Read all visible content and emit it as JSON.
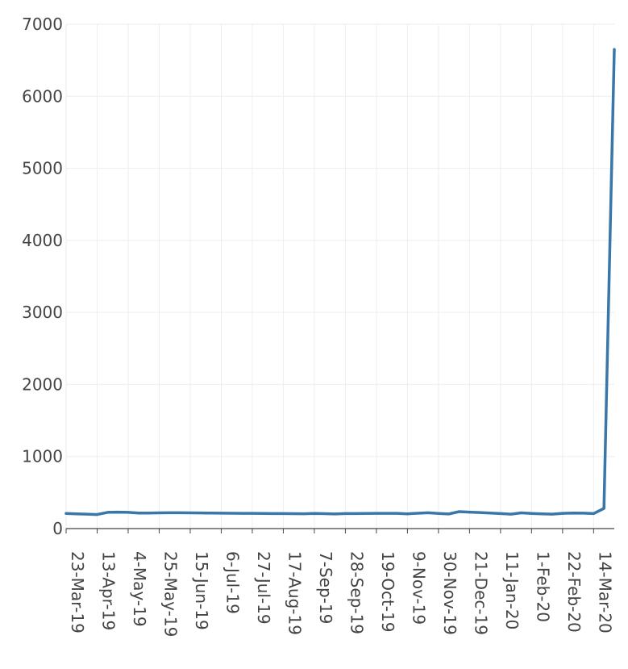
{
  "chart_data": {
    "type": "line",
    "title": "",
    "xlabel": "",
    "ylabel": "",
    "ylim": [
      0,
      7000
    ],
    "yticks": [
      0,
      1000,
      2000,
      3000,
      4000,
      5000,
      6000,
      7000
    ],
    "xlim": [
      "23-Mar-19",
      "28-Mar-20"
    ],
    "xtick_labels": [
      "23-Mar-19",
      "13-Apr-19",
      "4-May-19",
      "25-May-19",
      "15-Jun-19",
      "6-Jul-19",
      "27-Jul-19",
      "17-Aug-19",
      "7-Sep-19",
      "28-Sep-19",
      "19-Oct-19",
      "9-Nov-19",
      "30-Nov-19",
      "21-Dec-19",
      "11-Jan-20",
      "1-Feb-20",
      "22-Feb-20",
      "14-Mar-20"
    ],
    "grid": true,
    "legend": "none",
    "colors": {
      "series": "#3a76a8",
      "grid": "#eeeeee",
      "axis": "#444444"
    },
    "series": [
      {
        "x": [
          "23-Mar-19",
          "30-Mar-19",
          "6-Apr-19",
          "13-Apr-19",
          "20-Apr-19",
          "27-Apr-19",
          "4-May-19",
          "11-May-19",
          "18-May-19",
          "25-May-19",
          "1-Jun-19",
          "8-Jun-19",
          "15-Jun-19",
          "22-Jun-19",
          "29-Jun-19",
          "6-Jul-19",
          "13-Jul-19",
          "20-Jul-19",
          "27-Jul-19",
          "3-Aug-19",
          "10-Aug-19",
          "17-Aug-19",
          "24-Aug-19",
          "31-Aug-19",
          "7-Sep-19",
          "14-Sep-19",
          "21-Sep-19",
          "28-Sep-19",
          "5-Oct-19",
          "12-Oct-19",
          "19-Oct-19",
          "26-Oct-19",
          "2-Nov-19",
          "9-Nov-19",
          "16-Nov-19",
          "23-Nov-19",
          "30-Nov-19",
          "7-Dec-19",
          "14-Dec-19",
          "21-Dec-19",
          "28-Dec-19",
          "4-Jan-20",
          "11-Jan-20",
          "18-Jan-20",
          "25-Jan-20",
          "1-Feb-20",
          "8-Feb-20",
          "15-Feb-20",
          "22-Feb-20",
          "29-Feb-20",
          "7-Mar-20",
          "14-Mar-20",
          "21-Mar-20",
          "28-Mar-20"
        ],
        "y": [
          210,
          205,
          200,
          195,
          225,
          228,
          226,
          215,
          216,
          218,
          220,
          220,
          218,
          217,
          215,
          214,
          213,
          212,
          211,
          210,
          209,
          208,
          207,
          206,
          210,
          207,
          203,
          208,
          209,
          210,
          211,
          212,
          211,
          205,
          213,
          220,
          210,
          203,
          235,
          228,
          222,
          215,
          208,
          200,
          218,
          210,
          204,
          200,
          212,
          215,
          214,
          208,
          280,
          6650
        ]
      }
    ]
  }
}
